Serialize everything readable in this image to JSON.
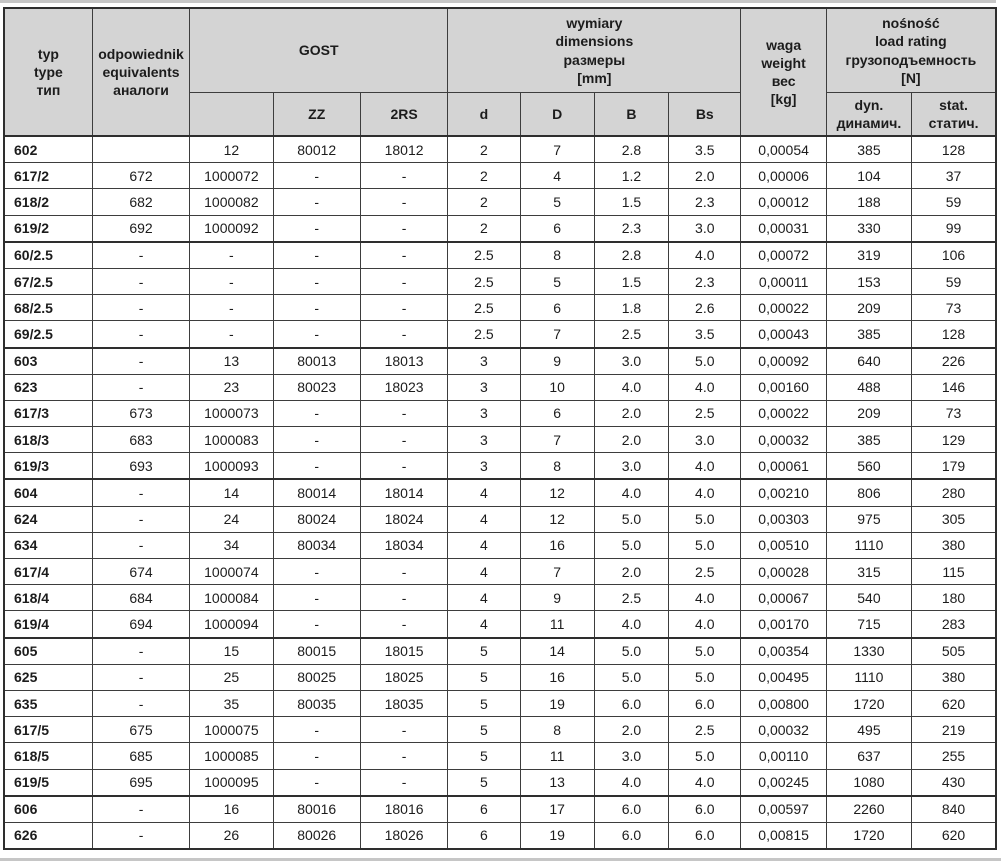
{
  "table": {
    "headers": {
      "type": "typ\ntype\nтип",
      "equivalents": "odpowiednik\nequivalents\nаналоги",
      "gost": "GOST",
      "gost_plain": "",
      "gost_zz": "ZZ",
      "gost_2rs": "2RS",
      "dimensions": "wymiary\ndimensions\nразмеры\n[mm]",
      "dim_d": "d",
      "dim_D": "D",
      "dim_B": "B",
      "dim_Bs": "Bs",
      "weight": "waga\nweight\nвес\n[kg]",
      "load_rating": "nośność\nload rating\nгрузоподъемность\n[N]",
      "dynamic": "dyn.\nдинамич.",
      "static": "stat.\nстатич."
    },
    "column_keys": [
      "type",
      "equivalent",
      "gost",
      "gost_zz",
      "gost_2rs",
      "d",
      "D",
      "B",
      "Bs",
      "weight_kg",
      "dyn_N",
      "stat_N"
    ],
    "rows": [
      [
        "602",
        "",
        "12",
        "80012",
        "18012",
        "2",
        "7",
        "2.8",
        "3.5",
        "0,00054",
        "385",
        "128"
      ],
      [
        "617/2",
        "672",
        "1000072",
        "-",
        "-",
        "2",
        "4",
        "1.2",
        "2.0",
        "0,00006",
        "104",
        "37"
      ],
      [
        "618/2",
        "682",
        "1000082",
        "-",
        "-",
        "2",
        "5",
        "1.5",
        "2.3",
        "0,00012",
        "188",
        "59"
      ],
      [
        "619/2",
        "692",
        "1000092",
        "-",
        "-",
        "2",
        "6",
        "2.3",
        "3.0",
        "0,00031",
        "330",
        "99"
      ],
      [
        "60/2.5",
        "-",
        "-",
        "-",
        "-",
        "2.5",
        "8",
        "2.8",
        "4.0",
        "0,00072",
        "319",
        "106"
      ],
      [
        "67/2.5",
        "-",
        "-",
        "-",
        "-",
        "2.5",
        "5",
        "1.5",
        "2.3",
        "0,00011",
        "153",
        "59"
      ],
      [
        "68/2.5",
        "-",
        "-",
        "-",
        "-",
        "2.5",
        "6",
        "1.8",
        "2.6",
        "0,00022",
        "209",
        "73"
      ],
      [
        "69/2.5",
        "-",
        "-",
        "-",
        "-",
        "2.5",
        "7",
        "2.5",
        "3.5",
        "0,00043",
        "385",
        "128"
      ],
      [
        "603",
        "-",
        "13",
        "80013",
        "18013",
        "3",
        "9",
        "3.0",
        "5.0",
        "0,00092",
        "640",
        "226"
      ],
      [
        "623",
        "-",
        "23",
        "80023",
        "18023",
        "3",
        "10",
        "4.0",
        "4.0",
        "0,00160",
        "488",
        "146"
      ],
      [
        "617/3",
        "673",
        "1000073",
        "-",
        "-",
        "3",
        "6",
        "2.0",
        "2.5",
        "0,00022",
        "209",
        "73"
      ],
      [
        "618/3",
        "683",
        "1000083",
        "-",
        "-",
        "3",
        "7",
        "2.0",
        "3.0",
        "0,00032",
        "385",
        "129"
      ],
      [
        "619/3",
        "693",
        "1000093",
        "-",
        "-",
        "3",
        "8",
        "3.0",
        "4.0",
        "0,00061",
        "560",
        "179"
      ],
      [
        "604",
        "-",
        "14",
        "80014",
        "18014",
        "4",
        "12",
        "4.0",
        "4.0",
        "0,00210",
        "806",
        "280"
      ],
      [
        "624",
        "-",
        "24",
        "80024",
        "18024",
        "4",
        "12",
        "5.0",
        "5.0",
        "0,00303",
        "975",
        "305"
      ],
      [
        "634",
        "-",
        "34",
        "80034",
        "18034",
        "4",
        "16",
        "5.0",
        "5.0",
        "0,00510",
        "1110",
        "380"
      ],
      [
        "617/4",
        "674",
        "1000074",
        "-",
        "-",
        "4",
        "7",
        "2.0",
        "2.5",
        "0,00028",
        "315",
        "115"
      ],
      [
        "618/4",
        "684",
        "1000084",
        "-",
        "-",
        "4",
        "9",
        "2.5",
        "4.0",
        "0,00067",
        "540",
        "180"
      ],
      [
        "619/4",
        "694",
        "1000094",
        "-",
        "-",
        "4",
        "11",
        "4.0",
        "4.0",
        "0,00170",
        "715",
        "283"
      ],
      [
        "605",
        "-",
        "15",
        "80015",
        "18015",
        "5",
        "14",
        "5.0",
        "5.0",
        "0,00354",
        "1330",
        "505"
      ],
      [
        "625",
        "-",
        "25",
        "80025",
        "18025",
        "5",
        "16",
        "5.0",
        "5.0",
        "0,00495",
        "1110",
        "380"
      ],
      [
        "635",
        "-",
        "35",
        "80035",
        "18035",
        "5",
        "19",
        "6.0",
        "6.0",
        "0,00800",
        "1720",
        "620"
      ],
      [
        "617/5",
        "675",
        "1000075",
        "-",
        "-",
        "5",
        "8",
        "2.0",
        "2.5",
        "0,00032",
        "495",
        "219"
      ],
      [
        "618/5",
        "685",
        "1000085",
        "-",
        "-",
        "5",
        "11",
        "3.0",
        "5.0",
        "0,00110",
        "637",
        "255"
      ],
      [
        "619/5",
        "695",
        "1000095",
        "-",
        "-",
        "5",
        "13",
        "4.0",
        "4.0",
        "0,00245",
        "1080",
        "430"
      ],
      [
        "606",
        "-",
        "16",
        "80016",
        "18016",
        "6",
        "17",
        "6.0",
        "6.0",
        "0,00597",
        "2260",
        "840"
      ],
      [
        "626",
        "-",
        "26",
        "80026",
        "18026",
        "6",
        "19",
        "6.0",
        "6.0",
        "0,00815",
        "1720",
        "620"
      ]
    ],
    "group_start_indices": [
      4,
      8,
      13,
      19,
      25
    ],
    "colors": {
      "header_background": "#d4d4d4",
      "grid_line": "#3d3d3d",
      "group_line": "#2e2e2e",
      "text": "#1c1c1c",
      "page_rule": "#c6c6c6"
    }
  }
}
